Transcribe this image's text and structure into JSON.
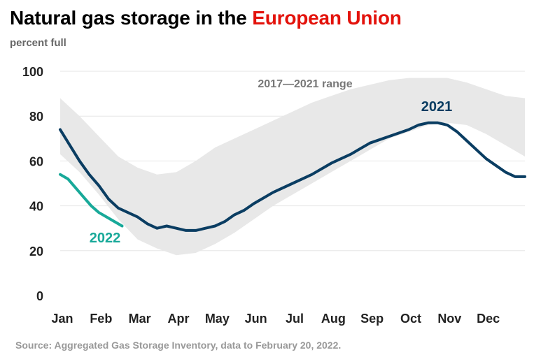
{
  "header": {
    "title_main": "Natural gas storage in the ",
    "title_accent": "European Union",
    "subtitle": "percent full"
  },
  "footer": {
    "source": "Source: Aggregated Gas Storage Inventory, data to February 20, 2022."
  },
  "colors": {
    "title_accent": "#e3120b",
    "range_fill": "#e8e8e8",
    "series_2021": "#0a3d62",
    "series_2022": "#18a999",
    "grid": "#e6e6e6",
    "range_label": "#777777"
  },
  "chart_data": {
    "type": "line",
    "title": "Natural gas storage in the European Union",
    "ylabel": "percent full",
    "ylim": [
      0,
      100
    ],
    "yticks": [
      0,
      20,
      40,
      60,
      80,
      100
    ],
    "xlim": [
      0,
      12
    ],
    "x_unit": "months from Jan 1",
    "xtick_labels": [
      "Jan",
      "Feb",
      "Mar",
      "Apr",
      "May",
      "Jun",
      "Jul",
      "Aug",
      "Sep",
      "Oct",
      "Nov",
      "Dec"
    ],
    "grid": true,
    "range": {
      "name": "2017—2021 range",
      "x": [
        0,
        0.5,
        1,
        1.5,
        2,
        2.5,
        3,
        3.5,
        4,
        4.5,
        5,
        5.5,
        6,
        6.5,
        7,
        7.5,
        8,
        8.5,
        9,
        9.5,
        10,
        10.5,
        11,
        11.5,
        12
      ],
      "upper": [
        88,
        80,
        71,
        62,
        57,
        54,
        55,
        60,
        66,
        70,
        74,
        78,
        82,
        86,
        89,
        92,
        94,
        96,
        97,
        97,
        97,
        95,
        92,
        89,
        88
      ],
      "lower": [
        63,
        55,
        45,
        34,
        25,
        21,
        18,
        19,
        23,
        28,
        34,
        40,
        45,
        50,
        55,
        60,
        65,
        70,
        73,
        76,
        77,
        76,
        72,
        67,
        62
      ]
    },
    "series": [
      {
        "name": "2021",
        "x": [
          0,
          0.25,
          0.5,
          0.75,
          1,
          1.25,
          1.5,
          1.75,
          2,
          2.25,
          2.5,
          2.75,
          3,
          3.25,
          3.5,
          3.75,
          4,
          4.25,
          4.5,
          4.75,
          5,
          5.5,
          6,
          6.5,
          7,
          7.5,
          8,
          8.5,
          9,
          9.25,
          9.5,
          9.75,
          10,
          10.25,
          10.5,
          10.75,
          11,
          11.25,
          11.5,
          11.75,
          12
        ],
        "values": [
          74,
          67,
          60,
          54,
          49,
          43,
          39,
          37,
          35,
          32,
          30,
          31,
          30,
          29,
          29,
          30,
          31,
          33,
          36,
          38,
          41,
          46,
          50,
          54,
          59,
          63,
          68,
          71,
          74,
          76,
          77,
          77,
          76,
          73,
          69,
          65,
          61,
          58,
          55,
          53,
          53
        ]
      },
      {
        "name": "2022",
        "x": [
          0,
          0.2,
          0.4,
          0.6,
          0.8,
          1,
          1.2,
          1.4,
          1.6
        ],
        "values": [
          54,
          52,
          48,
          44,
          40,
          37,
          35,
          33,
          31
        ]
      }
    ]
  }
}
